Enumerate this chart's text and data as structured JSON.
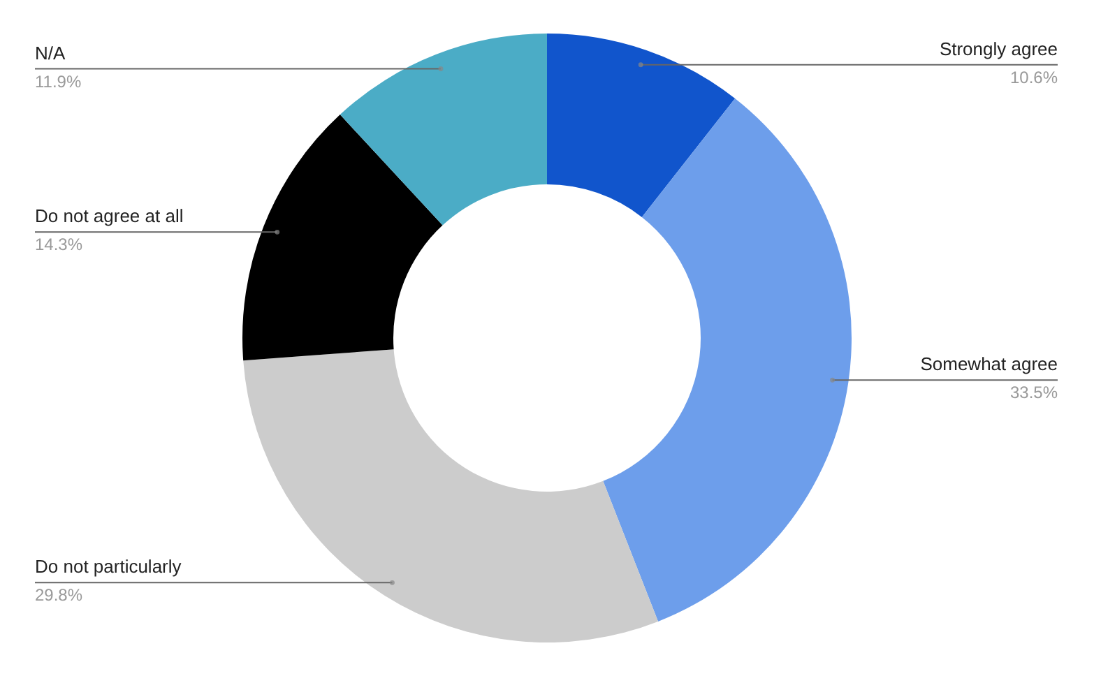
{
  "chart_data": {
    "type": "donut",
    "categories": [
      "Strongly agree",
      "Somewhat agree",
      "Do not particularly",
      "Do not agree at all",
      "N/A"
    ],
    "values": [
      10.6,
      33.5,
      29.8,
      14.3,
      11.9
    ],
    "colors": [
      "#1155cc",
      "#6d9eeb",
      "#cccccc",
      "#000000",
      "#4bacc6"
    ],
    "value_labels": [
      "10.6%",
      "33.5%",
      "29.8%",
      "14.3%",
      "11.9%"
    ]
  }
}
